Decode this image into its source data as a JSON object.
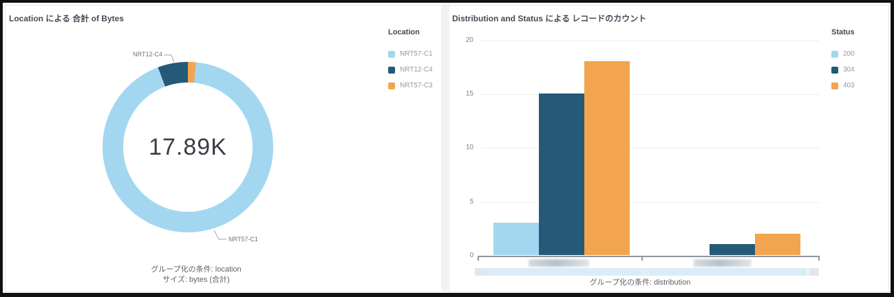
{
  "colors": {
    "light_blue": "#A3D7EF",
    "dark_blue": "#245A77",
    "orange": "#F2A44E",
    "title_text": "#464A53",
    "legend_text": "#94979E",
    "axis_text": "#7C8087",
    "caption_text": "#5D6167"
  },
  "left_panel": {
    "legend_title": "Location",
    "captions": [
      "グループ化の条件: location",
      "サイズ: bytes (合計)"
    ]
  },
  "right_panel": {
    "legend_title": "Status",
    "caption": "グループ化の条件: distribution",
    "y_ticks": [
      "0",
      "5",
      "10",
      "15",
      "20"
    ]
  },
  "chart_data": [
    {
      "type": "pie",
      "subtype": "donut",
      "title": "Location による 合計 of Bytes",
      "center_total": "17.89K",
      "rotation_deg": 5.4,
      "slices": [
        {
          "label": "NRT57-C1",
          "percent": 92.8,
          "color": "#A3D7EF"
        },
        {
          "label": "NRT12-C4",
          "percent": 5.7,
          "color": "#245A77"
        },
        {
          "label": "NRT57-C3",
          "percent": 1.5,
          "color": "#F2A44E"
        }
      ],
      "legend_title": "Location",
      "legend_position": "right"
    },
    {
      "type": "bar",
      "title": "Distribution and Status による レコードのカウント",
      "categories": [
        "",
        ""
      ],
      "categories_note": "x-axis category labels are blurred in the screenshot",
      "series": [
        {
          "name": "200",
          "color": "#A3D7EF",
          "values": [
            3,
            0
          ]
        },
        {
          "name": "304",
          "color": "#245A77",
          "values": [
            15,
            1
          ]
        },
        {
          "name": "403",
          "color": "#F2A44E",
          "values": [
            18,
            2
          ]
        }
      ],
      "ylim": [
        0,
        20
      ],
      "y_ticks": [
        0,
        5,
        10,
        15,
        20
      ],
      "grid": true,
      "legend_title": "Status",
      "legend_position": "right",
      "xlabel": "グループ化の条件: distribution"
    }
  ]
}
